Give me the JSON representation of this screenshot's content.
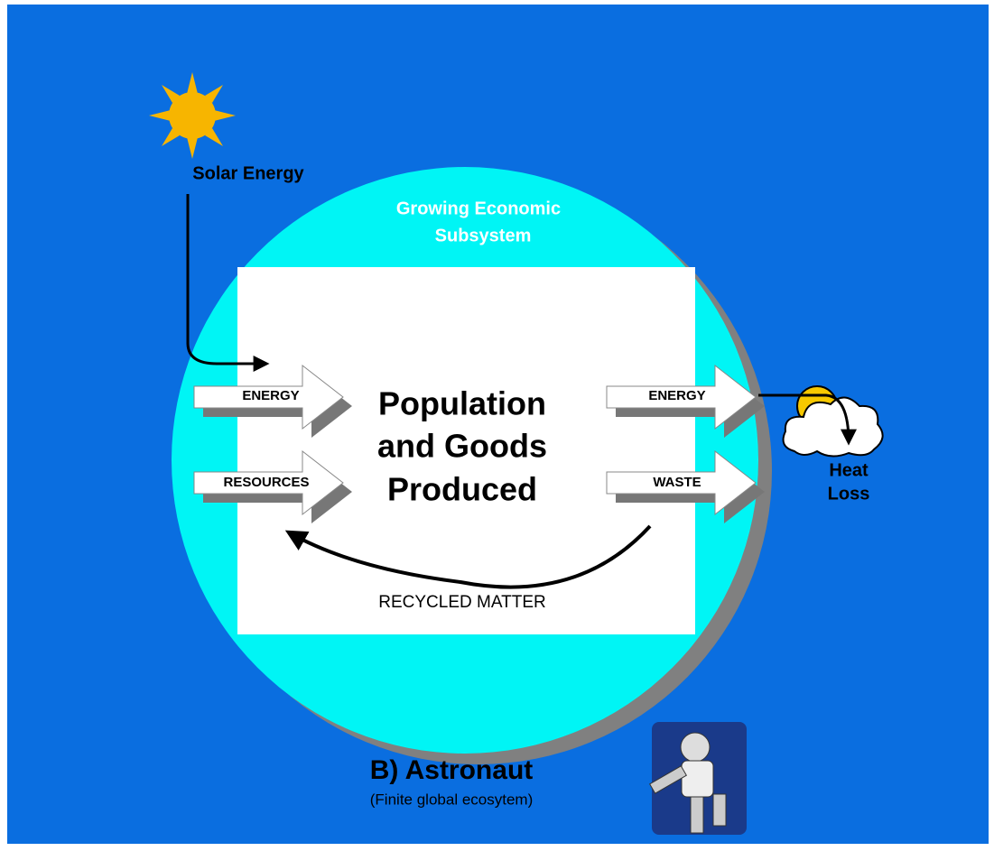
{
  "solar_label": "Solar Energy",
  "subsystem_label": [
    "Growing Economic",
    "Subsystem"
  ],
  "center_label": [
    "Population",
    "and Goods",
    "Produced"
  ],
  "inputs": [
    "ENERGY",
    "RESOURCES"
  ],
  "outputs": [
    "ENERGY",
    "WASTE"
  ],
  "heat_label": [
    "Heat",
    "Loss"
  ],
  "recycle_label": "RECYCLED MATTER",
  "caption": {
    "title": "B) Astronaut",
    "subtitle": "(Finite global ecosytem)"
  }
}
